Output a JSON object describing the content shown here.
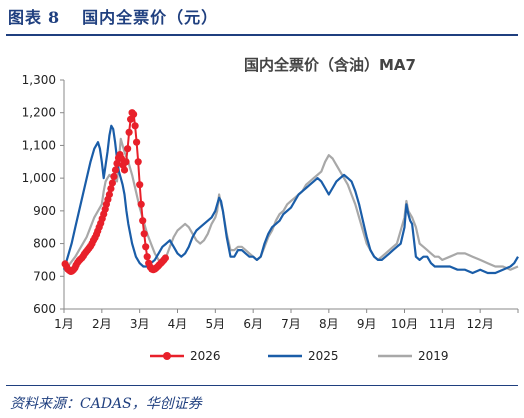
{
  "figure": {
    "label": "图表",
    "number": "8",
    "caption": "国内全票价（元）",
    "source": "资料来源：CADAS，华创证券"
  },
  "chart_data": {
    "type": "line",
    "title": "国内全票价（含油）MA7",
    "xlabel": "",
    "ylabel": "",
    "x_unit": "month",
    "xlim": [
      1,
      13
    ],
    "ylim": [
      600,
      1300
    ],
    "yticks": [
      600,
      700,
      800,
      900,
      1000,
      1100,
      1200,
      1300
    ],
    "ytick_labels": [
      "600",
      "700",
      "800",
      "900",
      "1,000",
      "1,100",
      "1,200",
      "1,300"
    ],
    "xticks": [
      1,
      2,
      3,
      4,
      5,
      6,
      7,
      8,
      9,
      10,
      11,
      12
    ],
    "xtick_labels": [
      "1月",
      "2月",
      "3月",
      "4月",
      "5月",
      "6月",
      "7月",
      "8月",
      "9月",
      "10月",
      "11月",
      "12月"
    ],
    "grid": false,
    "legend": "bottom",
    "series": [
      {
        "name": "2026",
        "color": "#e8202a",
        "markers": true,
        "x": [
          1.03,
          1.07,
          1.1,
          1.14,
          1.18,
          1.21,
          1.25,
          1.29,
          1.32,
          1.36,
          1.4,
          1.43,
          1.47,
          1.51,
          1.54,
          1.58,
          1.62,
          1.66,
          1.7,
          1.74,
          1.78,
          1.82,
          1.86,
          1.89,
          1.93,
          1.97,
          2.01,
          2.05,
          2.09,
          2.12,
          2.16,
          2.2,
          2.24,
          2.28,
          2.32,
          2.36,
          2.4,
          2.44,
          2.48,
          2.52,
          2.56,
          2.6,
          2.64,
          2.68,
          2.72,
          2.76,
          2.8,
          2.84,
          2.88,
          2.92,
          2.96,
          3.0,
          3.04,
          3.08,
          3.12,
          3.16,
          3.2,
          3.24,
          3.28,
          3.32,
          3.36,
          3.4,
          3.44,
          3.48,
          3.52,
          3.56,
          3.6,
          3.64,
          3.68
        ],
        "y": [
          738,
          730,
          722,
          718,
          715,
          716,
          720,
          726,
          734,
          742,
          748,
          752,
          756,
          762,
          768,
          774,
          780,
          786,
          792,
          800,
          810,
          818,
          828,
          838,
          850,
          862,
          876,
          890,
          905,
          920,
          935,
          950,
          968,
          985,
          1005,
          1025,
          1045,
          1062,
          1072,
          1060,
          1040,
          1025,
          1050,
          1090,
          1140,
          1180,
          1200,
          1195,
          1160,
          1110,
          1050,
          980,
          920,
          870,
          830,
          790,
          760,
          740,
          728,
          722,
          720,
          722,
          726,
          730,
          735,
          740,
          745,
          750,
          756
        ]
      },
      {
        "name": "2025",
        "color": "#1a5da8",
        "markers": false,
        "x": [
          1.0,
          1.1,
          1.2,
          1.3,
          1.4,
          1.5,
          1.6,
          1.7,
          1.8,
          1.9,
          1.95,
          2.0,
          2.05,
          2.1,
          2.15,
          2.2,
          2.25,
          2.3,
          2.35,
          2.4,
          2.45,
          2.5,
          2.55,
          2.6,
          2.65,
          2.7,
          2.8,
          2.9,
          3.0,
          3.1,
          3.2,
          3.3,
          3.4,
          3.5,
          3.6,
          3.7,
          3.8,
          3.9,
          4.0,
          4.1,
          4.2,
          4.3,
          4.4,
          4.5,
          4.6,
          4.7,
          4.8,
          4.9,
          5.0,
          5.05,
          5.1,
          5.15,
          5.2,
          5.3,
          5.4,
          5.5,
          5.6,
          5.7,
          5.8,
          5.9,
          6.0,
          6.1,
          6.2,
          6.3,
          6.4,
          6.5,
          6.6,
          6.7,
          6.8,
          6.9,
          7.0,
          7.1,
          7.2,
          7.3,
          7.4,
          7.5,
          7.6,
          7.7,
          7.8,
          7.9,
          8.0,
          8.1,
          8.2,
          8.3,
          8.4,
          8.5,
          8.6,
          8.7,
          8.8,
          8.9,
          9.0,
          9.1,
          9.2,
          9.3,
          9.4,
          9.5,
          9.6,
          9.7,
          9.8,
          9.9,
          10.0,
          10.05,
          10.1,
          10.15,
          10.2,
          10.3,
          10.4,
          10.5,
          10.6,
          10.7,
          10.8,
          10.9,
          11.0,
          11.2,
          11.4,
          11.6,
          11.8,
          12.0,
          12.2,
          12.4,
          12.6,
          12.8,
          12.9,
          13.0
        ],
        "y": [
          720,
          760,
          800,
          850,
          900,
          950,
          1000,
          1050,
          1090,
          1110,
          1090,
          1050,
          1000,
          1040,
          1080,
          1130,
          1160,
          1150,
          1110,
          1060,
          1020,
          1000,
          980,
          950,
          900,
          860,
          800,
          760,
          740,
          730,
          730,
          740,
          750,
          770,
          790,
          800,
          810,
          790,
          770,
          760,
          770,
          790,
          820,
          840,
          850,
          860,
          870,
          880,
          900,
          920,
          940,
          930,
          900,
          820,
          760,
          760,
          780,
          780,
          770,
          760,
          760,
          750,
          760,
          800,
          830,
          850,
          860,
          870,
          890,
          900,
          910,
          930,
          950,
          960,
          970,
          980,
          990,
          1000,
          990,
          970,
          950,
          970,
          990,
          1000,
          1010,
          1000,
          990,
          960,
          920,
          870,
          820,
          780,
          760,
          750,
          750,
          760,
          770,
          780,
          790,
          800,
          850,
          920,
          890,
          870,
          860,
          760,
          750,
          760,
          760,
          740,
          730,
          730,
          730,
          730,
          720,
          720,
          710,
          720,
          710,
          710,
          720,
          730,
          740,
          760
        ]
      },
      {
        "name": "2019",
        "color": "#a8a8a8",
        "markers": false,
        "x": [
          1.0,
          1.1,
          1.2,
          1.3,
          1.4,
          1.5,
          1.6,
          1.7,
          1.8,
          1.9,
          2.0,
          2.05,
          2.1,
          2.15,
          2.2,
          2.3,
          2.4,
          2.5,
          2.6,
          2.7,
          2.8,
          2.9,
          3.0,
          3.1,
          3.2,
          3.3,
          3.4,
          3.5,
          3.6,
          3.7,
          3.8,
          3.9,
          4.0,
          4.1,
          4.2,
          4.3,
          4.4,
          4.5,
          4.6,
          4.7,
          4.8,
          4.9,
          5.0,
          5.05,
          5.1,
          5.15,
          5.2,
          5.3,
          5.4,
          5.5,
          5.6,
          5.7,
          5.8,
          5.9,
          6.0,
          6.1,
          6.2,
          6.3,
          6.4,
          6.5,
          6.6,
          6.7,
          6.8,
          6.9,
          7.0,
          7.1,
          7.2,
          7.3,
          7.4,
          7.5,
          7.6,
          7.7,
          7.8,
          7.9,
          8.0,
          8.1,
          8.2,
          8.3,
          8.4,
          8.5,
          8.6,
          8.7,
          8.8,
          8.9,
          9.0,
          9.1,
          9.2,
          9.3,
          9.4,
          9.5,
          9.6,
          9.7,
          9.8,
          9.9,
          10.0,
          10.05,
          10.1,
          10.2,
          10.3,
          10.4,
          10.5,
          10.6,
          10.7,
          10.8,
          10.9,
          11.0,
          11.2,
          11.4,
          11.6,
          11.8,
          12.0,
          12.2,
          12.4,
          12.6,
          12.8,
          13.0
        ],
        "y": [
          720,
          730,
          745,
          760,
          780,
          800,
          820,
          850,
          880,
          900,
          920,
          960,
          990,
          1000,
          1010,
          1000,
          990,
          1120,
          1080,
          1050,
          1010,
          960,
          910,
          870,
          830,
          800,
          770,
          750,
          745,
          760,
          790,
          820,
          840,
          850,
          860,
          850,
          830,
          810,
          800,
          810,
          830,
          860,
          880,
          900,
          950,
          920,
          900,
          830,
          780,
          780,
          790,
          790,
          780,
          770,
          760,
          750,
          760,
          790,
          820,
          840,
          870,
          890,
          900,
          920,
          930,
          940,
          950,
          960,
          980,
          990,
          1000,
          1010,
          1020,
          1050,
          1070,
          1060,
          1040,
          1020,
          1000,
          980,
          950,
          920,
          880,
          840,
          800,
          780,
          760,
          750,
          760,
          770,
          780,
          790,
          800,
          840,
          880,
          930,
          900,
          880,
          850,
          800,
          790,
          780,
          770,
          760,
          760,
          750,
          760,
          770,
          770,
          760,
          750,
          740,
          730,
          730,
          720,
          730
        ]
      }
    ]
  }
}
